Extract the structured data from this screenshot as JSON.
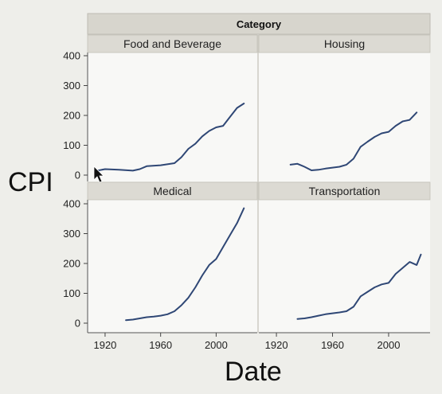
{
  "group_title": "Category",
  "ylabel": "CPI",
  "xlabel": "Date",
  "chart_data": {
    "type": "line",
    "layout": "2x2 facet grid",
    "xlim": [
      1912,
      2025
    ],
    "ylim": [
      0,
      400
    ],
    "x_ticks": [
      "1920",
      "1960",
      "2000"
    ],
    "x_tick_values": [
      1920,
      1960,
      2000
    ],
    "y_ticks": [
      "0",
      "100",
      "200",
      "300",
      "400"
    ],
    "y_tick_values": [
      0,
      100,
      200,
      300,
      400
    ],
    "grid": false,
    "legend": "none",
    "line_color": "#2f4775",
    "panels": [
      {
        "label": "Food and Beverage",
        "x": [
          1913,
          1920,
          1930,
          1940,
          1945,
          1950,
          1960,
          1970,
          1975,
          1980,
          1985,
          1990,
          1995,
          2000,
          2005,
          2010,
          2015,
          2020
        ],
        "y": [
          14,
          20,
          18,
          15,
          20,
          30,
          33,
          40,
          60,
          88,
          105,
          130,
          148,
          160,
          165,
          195,
          225,
          240
        ]
      },
      {
        "label": "Housing",
        "x": [
          1930,
          1935,
          1940,
          1945,
          1950,
          1955,
          1960,
          1965,
          1970,
          1975,
          1980,
          1985,
          1990,
          1995,
          2000,
          2005,
          2010,
          2015,
          2020
        ],
        "y": [
          35,
          38,
          28,
          16,
          18,
          22,
          25,
          28,
          35,
          55,
          95,
          112,
          128,
          140,
          145,
          165,
          180,
          185,
          210
        ]
      },
      {
        "label": "Medical",
        "x": [
          1935,
          1940,
          1945,
          1950,
          1955,
          1960,
          1965,
          1970,
          1975,
          1980,
          1985,
          1990,
          1995,
          2000,
          2005,
          2010,
          2015,
          2020
        ],
        "y": [
          10,
          12,
          16,
          20,
          22,
          25,
          30,
          40,
          60,
          85,
          120,
          160,
          195,
          215,
          255,
          295,
          335,
          385
        ]
      },
      {
        "label": "Transportation",
        "x": [
          1935,
          1940,
          1945,
          1950,
          1955,
          1960,
          1965,
          1970,
          1975,
          1980,
          1985,
          1990,
          1995,
          2000,
          2005,
          2010,
          2015,
          2020,
          2023
        ],
        "y": [
          14,
          16,
          20,
          25,
          30,
          33,
          36,
          40,
          55,
          90,
          105,
          120,
          130,
          135,
          165,
          185,
          205,
          195,
          230
        ]
      }
    ]
  }
}
